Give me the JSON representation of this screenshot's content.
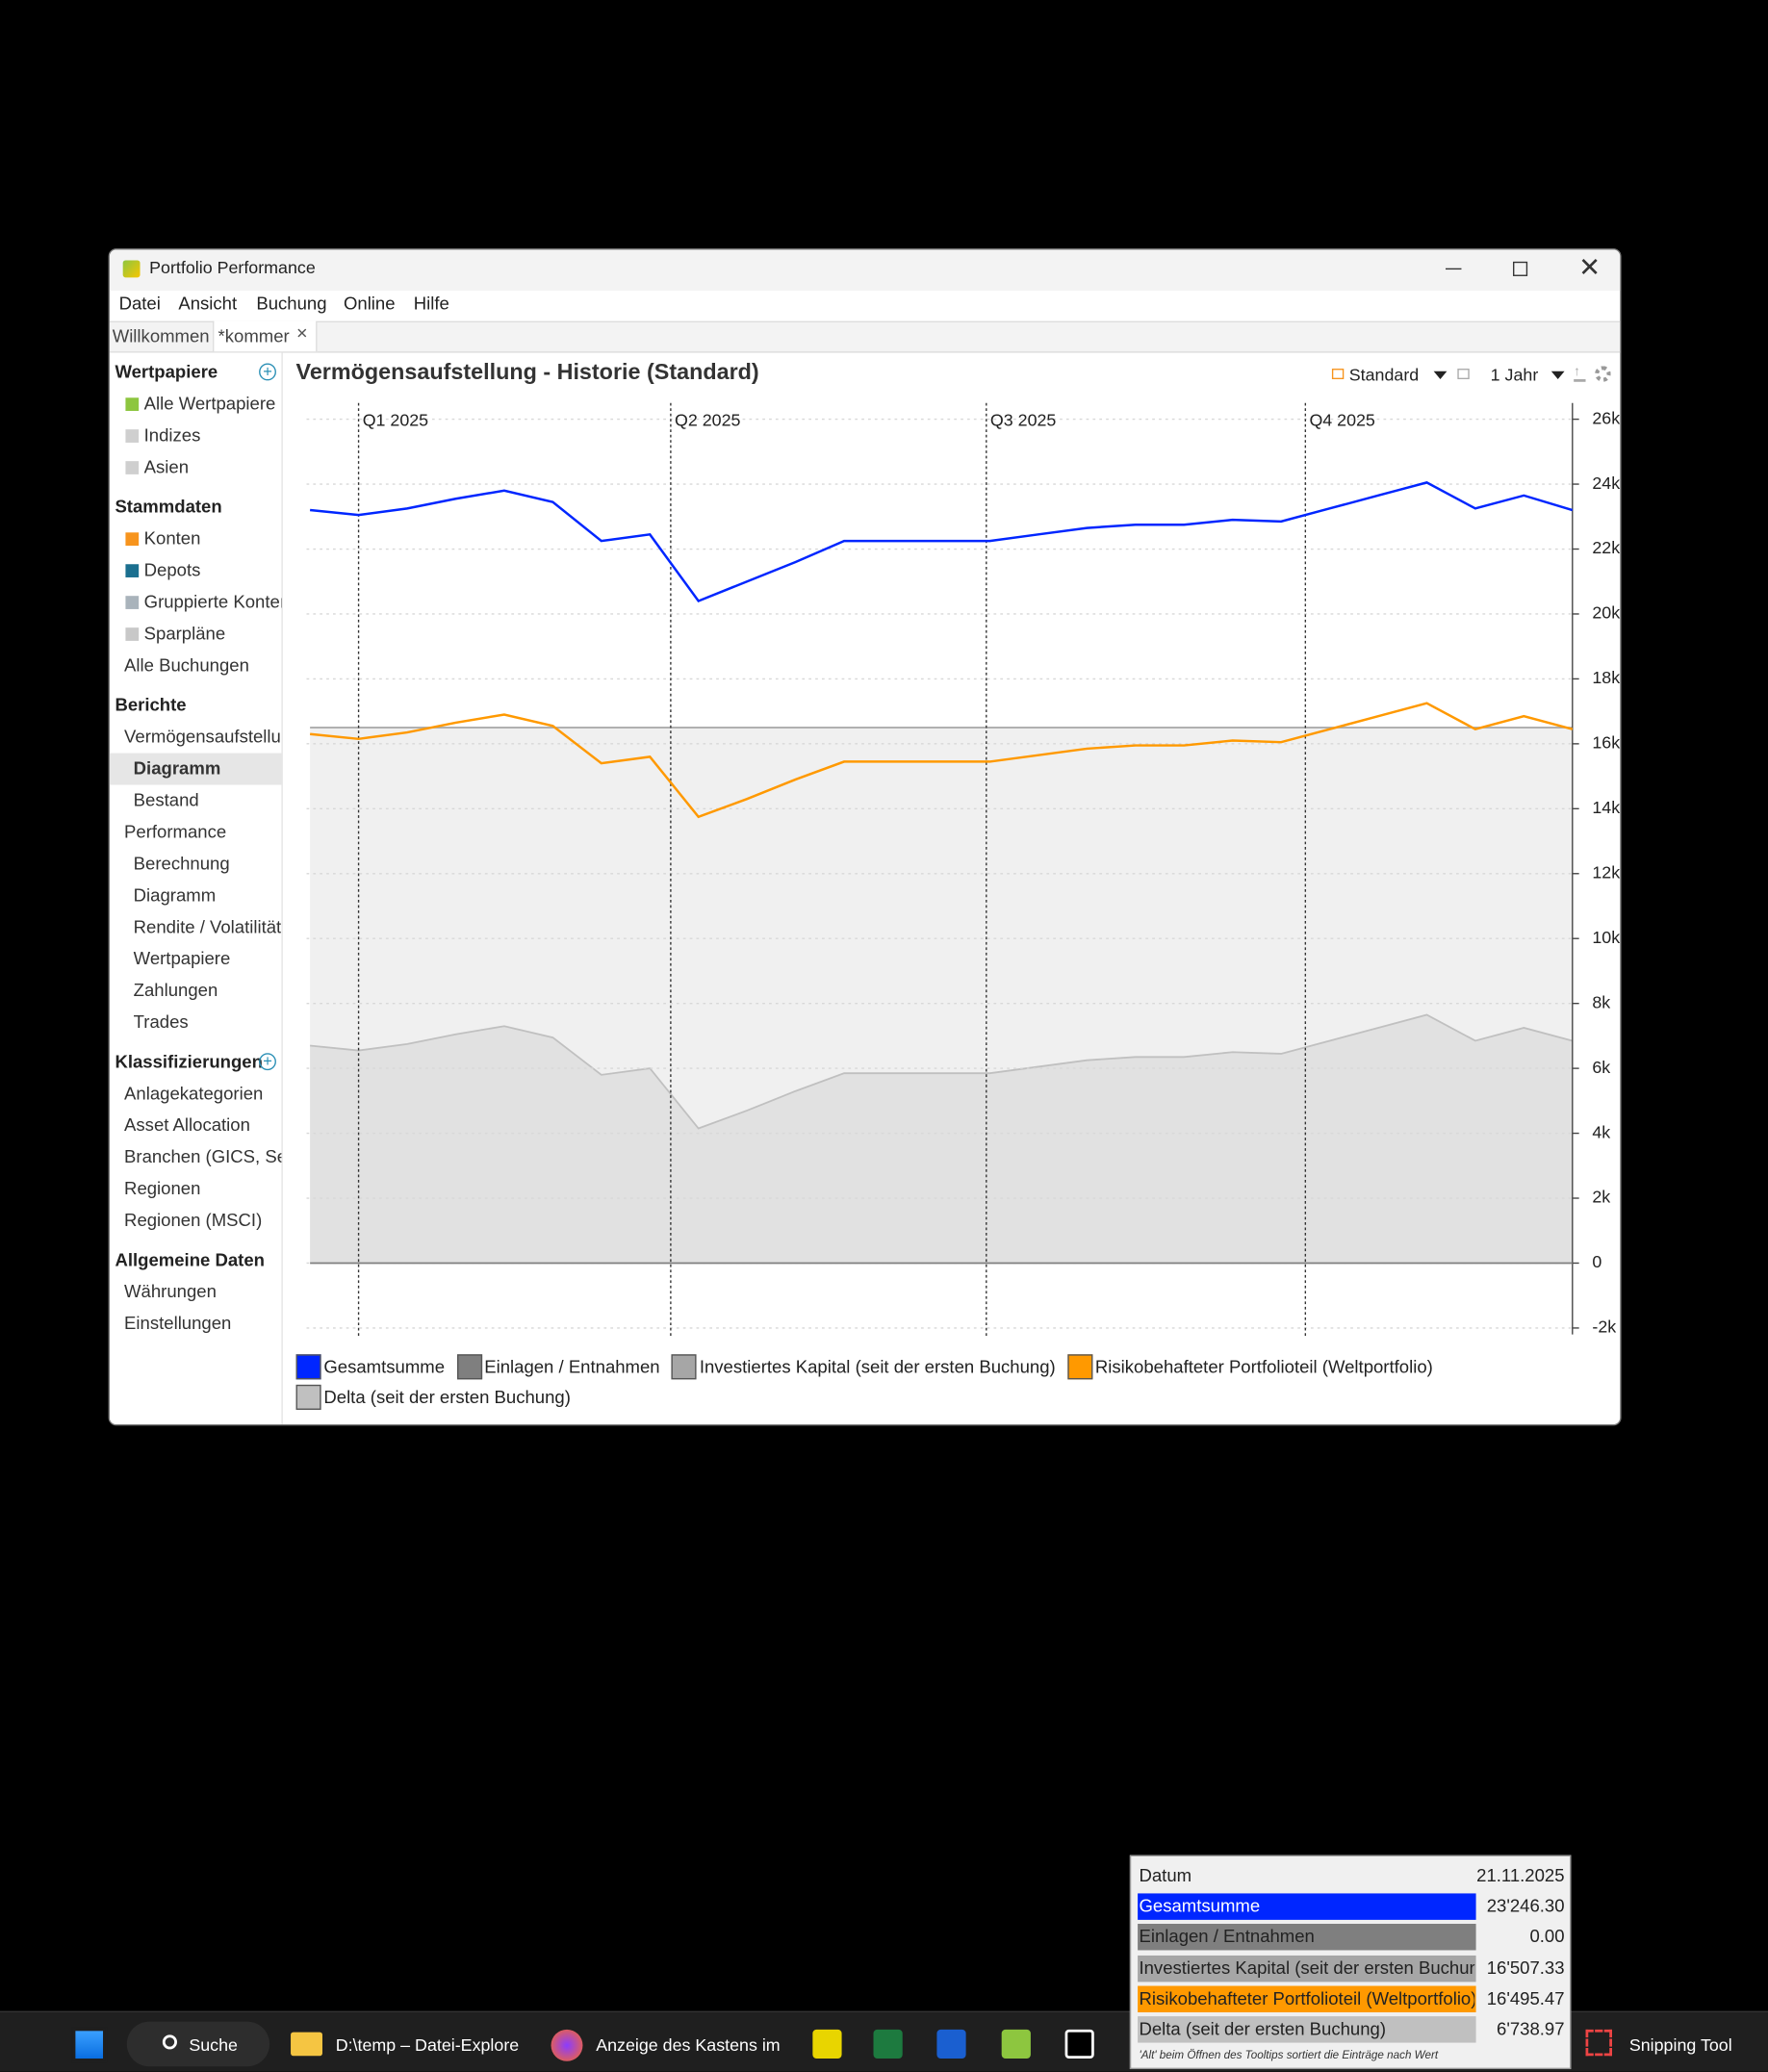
{
  "window": {
    "title": "Portfolio Performance",
    "menu": [
      "Datei",
      "Ansicht",
      "Buchung",
      "Online",
      "Hilfe"
    ],
    "tabs": [
      "Willkommen",
      "*kommer"
    ]
  },
  "sidebar": [
    {
      "title": "Wertpapiere",
      "items": [
        {
          "label": "Alle Wertpapiere"
        },
        {
          "label": "Indizes"
        },
        {
          "label": "Asien"
        }
      ]
    },
    {
      "title": "Stammdaten",
      "items": [
        {
          "label": "Konten"
        },
        {
          "label": "Depots"
        },
        {
          "label": "Gruppierte Konter"
        },
        {
          "label": "Sparpläne"
        },
        {
          "label": "Alle Buchungen"
        }
      ]
    },
    {
      "title": "Berichte",
      "items": [
        {
          "label": "Vermögensaufstellur",
          "children": [
            {
              "label": "Diagramm",
              "selected": true
            },
            {
              "label": "Bestand"
            }
          ]
        },
        {
          "label": "Performance",
          "children": [
            {
              "label": "Berechnung"
            },
            {
              "label": "Diagramm"
            },
            {
              "label": "Rendite / Volatilität"
            },
            {
              "label": "Wertpapiere"
            },
            {
              "label": "Zahlungen"
            },
            {
              "label": "Trades"
            }
          ]
        }
      ]
    },
    {
      "title": "Klassifizierungen",
      "items": [
        {
          "label": "Anlagekategorien"
        },
        {
          "label": "Asset Allocation"
        },
        {
          "label": "Branchen (GICS, Sekt"
        },
        {
          "label": "Regionen"
        },
        {
          "label": "Regionen (MSCI)"
        }
      ]
    },
    {
      "title": "Allgemeine Daten",
      "items": [
        {
          "label": "Währungen"
        },
        {
          "label": "Einstellungen"
        }
      ]
    }
  ],
  "toolbar": {
    "view": "Standard",
    "period": "1 Jahr"
  },
  "chart_data": {
    "type": "line",
    "title": "Vermögensaufstellung - Historie (Standard)",
    "x": [
      -14,
      0,
      14,
      28,
      42,
      56,
      70,
      84,
      98,
      112,
      126,
      140,
      154,
      168,
      182,
      196,
      210,
      224,
      238,
      252,
      266,
      280,
      294,
      308,
      322,
      336,
      350
    ],
    "xlim": [
      -15,
      350
    ],
    "xticks": [
      {
        "value": 0,
        "label": "Q1 2025"
      },
      {
        "value": 90,
        "label": "Q2 2025"
      },
      {
        "value": 181,
        "label": "Q3 2025"
      },
      {
        "value": 273,
        "label": "Q4 2025"
      }
    ],
    "ylim": [
      -2200,
      26500
    ],
    "yticks": [
      {
        "value": 26000,
        "label": "26k"
      },
      {
        "value": 24000,
        "label": "24k"
      },
      {
        "value": 22000,
        "label": "22k"
      },
      {
        "value": 20000,
        "label": "20k"
      },
      {
        "value": 18000,
        "label": "18k"
      },
      {
        "value": 16000,
        "label": "16k"
      },
      {
        "value": 14000,
        "label": "14k"
      },
      {
        "value": 12000,
        "label": "12k"
      },
      {
        "value": 10000,
        "label": "10k"
      },
      {
        "value": 8000,
        "label": "8k"
      },
      {
        "value": 6000,
        "label": "6k"
      },
      {
        "value": 4000,
        "label": "4k"
      },
      {
        "value": 2000,
        "label": "2k"
      },
      0,
      {
        "value": -2000,
        "label": "-2k"
      }
    ],
    "grid": true,
    "series": [
      {
        "name": "Gesamtsumme",
        "color": "#0026ff",
        "style": "line",
        "values": [
          23200,
          23050,
          23250,
          23550,
          23800,
          23450,
          22250,
          22450,
          20400,
          21000,
          21600,
          22250,
          22250,
          22250,
          22250,
          22450,
          22650,
          22750,
          22750,
          22900,
          22850,
          23250,
          23650,
          24050,
          23250,
          23650,
          23200
        ]
      },
      {
        "name": "Einlagen / Entnahmen",
        "color": "#7f7f7f",
        "style": "line",
        "values": [
          0,
          0,
          0,
          0,
          0,
          0,
          0,
          0,
          0,
          0,
          0,
          0,
          0,
          0,
          0,
          0,
          0,
          0,
          0,
          0,
          0,
          0,
          0,
          0,
          0,
          0,
          0
        ]
      },
      {
        "name": "Investiertes Kapital (seit der ersten Buchung)",
        "color": "#a6a6a6",
        "style": "area",
        "values": [
          16500,
          16500,
          16500,
          16500,
          16500,
          16500,
          16500,
          16500,
          16500,
          16500,
          16500,
          16500,
          16500,
          16500,
          16500,
          16500,
          16500,
          16500,
          16500,
          16500,
          16500,
          16500,
          16500,
          16500,
          16500,
          16500,
          16500
        ]
      },
      {
        "name": "Risikobehafteter Portfolioteil (Weltportfolio)",
        "color": "#ff9900",
        "style": "line",
        "values": [
          16300,
          16150,
          16350,
          16650,
          16900,
          16550,
          15400,
          15600,
          13750,
          14300,
          14900,
          15450,
          15450,
          15450,
          15450,
          15650,
          15850,
          15950,
          15950,
          16100,
          16050,
          16450,
          16850,
          17250,
          16450,
          16850,
          16450
        ]
      },
      {
        "name": "Delta (seit der ersten Buchung)",
        "color": "#c0c0c0",
        "style": "area",
        "values": [
          6700,
          6550,
          6750,
          7050,
          7300,
          6950,
          5800,
          6000,
          4150,
          4700,
          5300,
          5850,
          5850,
          5850,
          5850,
          6050,
          6250,
          6350,
          6350,
          6500,
          6450,
          6850,
          7250,
          7650,
          6850,
          7250,
          6850
        ]
      }
    ]
  },
  "tooltip": {
    "label": "Datum",
    "date": "21.11.2025",
    "values": [
      "23'246.30",
      "0.00",
      "16'507.33",
      "16'495.47",
      "6'738.97"
    ],
    "note": "'Alt' beim Öffnen des Tooltips sortiert die Einträge nach Wert"
  },
  "taskbar": {
    "search": "Suche",
    "apps": [
      "D:\\temp – Datei-Explore",
      "Anzeige des Kastens im",
      "Snipping Tool"
    ]
  }
}
